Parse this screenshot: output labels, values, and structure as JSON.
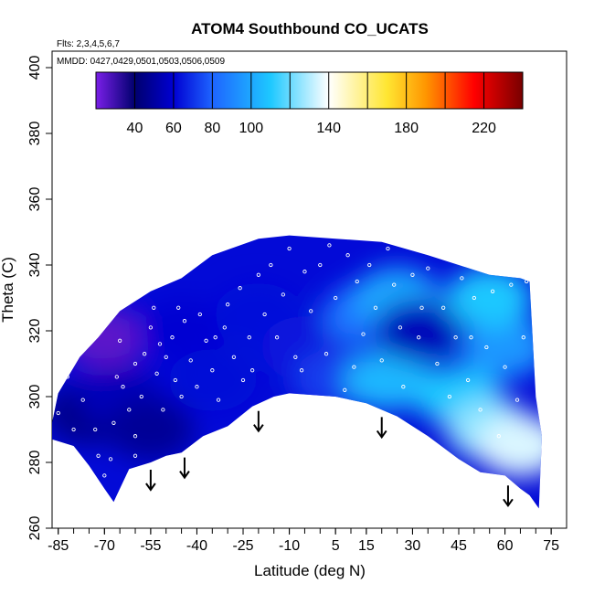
{
  "chart_data": {
    "type": "heatmap",
    "title": "ATOM4 Southbound CO_UCATS",
    "flights_note": "Flts: 2,3,4,5,6,7",
    "dates_note": "MMDD: 0427,0429,0501,0503,0506,0509",
    "xlabel": "Latitude (deg N)",
    "ylabel": "Theta (C)",
    "xlim": [
      -87,
      80
    ],
    "ylim": [
      260,
      405
    ],
    "x_tick_labels": [
      "-85",
      "-70",
      "-55",
      "-40",
      "-25",
      "-10",
      "5",
      "15",
      "30",
      "45",
      "60",
      "75"
    ],
    "x_tick_values": [
      -85,
      -70,
      -55,
      -40,
      -25,
      -10,
      5,
      15,
      30,
      45,
      60,
      75
    ],
    "x_minor_step": 5,
    "y_tick_labels": [
      "260",
      "280",
      "300",
      "320",
      "340",
      "360",
      "380",
      "400"
    ],
    "y_tick_values": [
      260,
      280,
      300,
      320,
      340,
      360,
      380,
      400
    ],
    "colorbar": {
      "min": 20,
      "max": 240,
      "tick_labels": [
        "40",
        "60",
        "80",
        "100",
        "140",
        "180",
        "220"
      ],
      "tick_values": [
        40,
        60,
        80,
        100,
        140,
        180,
        220
      ],
      "boundaries": [
        40,
        60,
        80,
        100,
        120,
        140,
        160,
        180,
        200,
        220
      ],
      "colors": [
        "#7a1fe8",
        "#00006e",
        "#0000d2",
        "#1e64ff",
        "#1ec8ff",
        "#ffffff",
        "#ffe632",
        "#ff9600",
        "#ff0000",
        "#780000"
      ],
      "color_stops": [
        20,
        40,
        60,
        80,
        110,
        140,
        170,
        190,
        215,
        240
      ]
    },
    "domain_boundary": {
      "top": [
        [
          -87,
          292
        ],
        [
          -85,
          301
        ],
        [
          -78,
          312
        ],
        [
          -72,
          318
        ],
        [
          -65,
          326
        ],
        [
          -55,
          332
        ],
        [
          -45,
          336
        ],
        [
          -35,
          343
        ],
        [
          -20,
          348
        ],
        [
          -10,
          349
        ],
        [
          5,
          348
        ],
        [
          20,
          347
        ],
        [
          35,
          343
        ],
        [
          45,
          340
        ],
        [
          55,
          337
        ],
        [
          65,
          336
        ],
        [
          68,
          335
        ],
        [
          70,
          300
        ],
        [
          72,
          288
        ],
        [
          71,
          266
        ]
      ],
      "bottom": [
        [
          -87,
          287
        ],
        [
          -80,
          285
        ],
        [
          -75,
          279
        ],
        [
          -70,
          272
        ],
        [
          -67,
          268
        ],
        [
          -62,
          278
        ],
        [
          -55,
          280
        ],
        [
          -50,
          282
        ],
        [
          -45,
          283
        ],
        [
          -38,
          288
        ],
        [
          -30,
          291
        ],
        [
          -22,
          297
        ],
        [
          -15,
          300
        ],
        [
          -10,
          301
        ],
        [
          5,
          300
        ],
        [
          15,
          298
        ],
        [
          25,
          294
        ],
        [
          35,
          288
        ],
        [
          45,
          281
        ],
        [
          52,
          277
        ],
        [
          60,
          276
        ],
        [
          65,
          272
        ],
        [
          68,
          270
        ]
      ]
    },
    "field_patches": [
      {
        "lat": -70,
        "theta": 318,
        "value": 25
      },
      {
        "lat": -75,
        "theta": 295,
        "value": 45
      },
      {
        "lat": -65,
        "theta": 300,
        "value": 55
      },
      {
        "lat": -55,
        "theta": 290,
        "value": 48
      },
      {
        "lat": -45,
        "theta": 320,
        "value": 60
      },
      {
        "lat": -35,
        "theta": 305,
        "value": 62
      },
      {
        "lat": -20,
        "theta": 325,
        "value": 63
      },
      {
        "lat": -5,
        "theta": 315,
        "value": 65
      },
      {
        "lat": 5,
        "theta": 305,
        "value": 72
      },
      {
        "lat": 15,
        "theta": 325,
        "value": 85
      },
      {
        "lat": 25,
        "theta": 330,
        "value": 100
      },
      {
        "lat": 22,
        "theta": 305,
        "value": 105
      },
      {
        "lat": 32,
        "theta": 320,
        "value": 55
      },
      {
        "lat": 45,
        "theta": 300,
        "value": 110
      },
      {
        "lat": 55,
        "theta": 290,
        "value": 125
      },
      {
        "lat": 60,
        "theta": 315,
        "value": 95
      },
      {
        "lat": 65,
        "theta": 285,
        "value": 135
      },
      {
        "lat": 55,
        "theta": 330,
        "value": 110
      }
    ],
    "sample_points": [
      [
        -82,
        306
      ],
      [
        -77,
        299
      ],
      [
        -73,
        290
      ],
      [
        -72,
        282
      ],
      [
        -70,
        276
      ],
      [
        -68,
        281
      ],
      [
        -67,
        292
      ],
      [
        -66,
        306
      ],
      [
        -65,
        317
      ],
      [
        -64,
        303
      ],
      [
        -62,
        296
      ],
      [
        -60,
        310
      ],
      [
        -60,
        288
      ],
      [
        -58,
        300
      ],
      [
        -57,
        313
      ],
      [
        -55,
        321
      ],
      [
        -54,
        327
      ],
      [
        -53,
        307
      ],
      [
        -51,
        296
      ],
      [
        -50,
        312
      ],
      [
        -48,
        318
      ],
      [
        -47,
        305
      ],
      [
        -45,
        300
      ],
      [
        -44,
        323
      ],
      [
        -42,
        311
      ],
      [
        -40,
        303
      ],
      [
        -39,
        325
      ],
      [
        -37,
        317
      ],
      [
        -35,
        308
      ],
      [
        -33,
        299
      ],
      [
        -31,
        321
      ],
      [
        -30,
        328
      ],
      [
        -28,
        312
      ],
      [
        -26,
        333
      ],
      [
        -25,
        305
      ],
      [
        -23,
        318
      ],
      [
        -20,
        337
      ],
      [
        -18,
        325
      ],
      [
        -16,
        340
      ],
      [
        -14,
        318
      ],
      [
        -12,
        331
      ],
      [
        -10,
        345
      ],
      [
        -8,
        312
      ],
      [
        -5,
        338
      ],
      [
        -3,
        326
      ],
      [
        0,
        340
      ],
      [
        2,
        313
      ],
      [
        3,
        346
      ],
      [
        5,
        330
      ],
      [
        8,
        302
      ],
      [
        9,
        343
      ],
      [
        12,
        335
      ],
      [
        14,
        319
      ],
      [
        16,
        340
      ],
      [
        18,
        327
      ],
      [
        20,
        311
      ],
      [
        22,
        345
      ],
      [
        24,
        334
      ],
      [
        26,
        321
      ],
      [
        27,
        303
      ],
      [
        30,
        337
      ],
      [
        32,
        318
      ],
      [
        35,
        339
      ],
      [
        38,
        310
      ],
      [
        40,
        327
      ],
      [
        42,
        300
      ],
      [
        44,
        318
      ],
      [
        46,
        336
      ],
      [
        48,
        305
      ],
      [
        50,
        330
      ],
      [
        52,
        296
      ],
      [
        54,
        315
      ],
      [
        56,
        332
      ],
      [
        58,
        288
      ],
      [
        60,
        309
      ],
      [
        62,
        334
      ],
      [
        64,
        299
      ],
      [
        66,
        318
      ],
      [
        67,
        335
      ],
      [
        -85,
        295
      ],
      [
        -80,
        290
      ],
      [
        -60,
        282
      ],
      [
        -52,
        316
      ],
      [
        -46,
        327
      ],
      [
        -34,
        318
      ],
      [
        -22,
        308
      ],
      [
        -6,
        308
      ],
      [
        11,
        309
      ],
      [
        33,
        327
      ],
      [
        49,
        318
      ]
    ],
    "arrow_latitudes": [
      -55,
      -44,
      -20,
      20,
      61
    ]
  }
}
